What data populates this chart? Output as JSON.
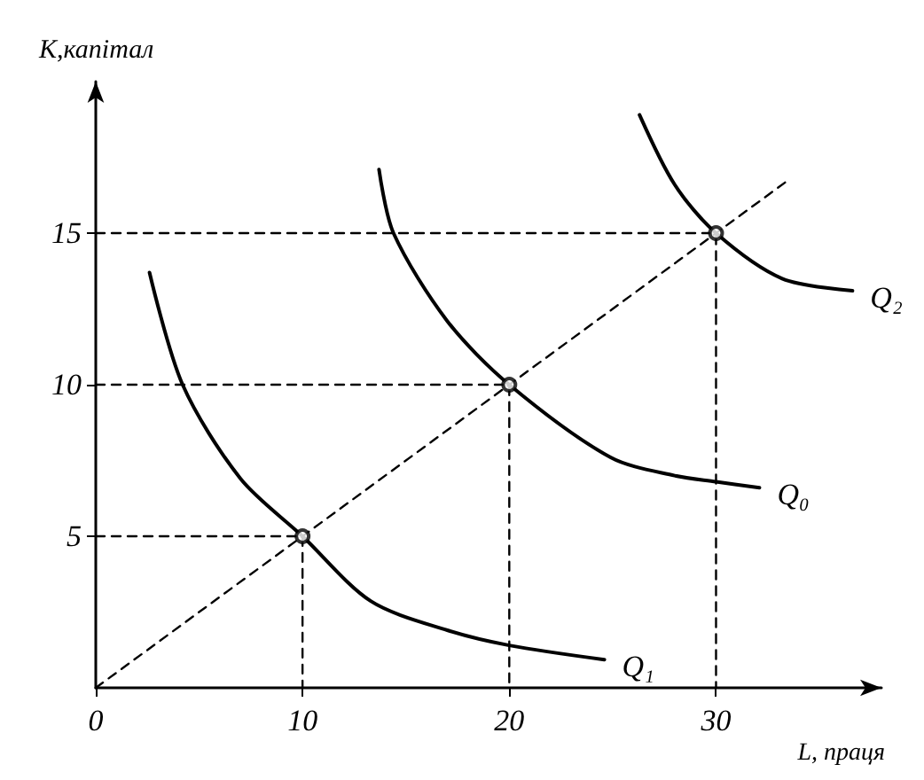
{
  "chart_data": {
    "type": "line",
    "xlabel": "L, праця",
    "ylabel": "K,капітал",
    "xlim": [
      0,
      38
    ],
    "ylim": [
      0,
      20
    ],
    "xticks": [
      0,
      10,
      20,
      30
    ],
    "yticks": [
      5,
      10,
      15
    ],
    "marker": "none",
    "line_style": "solid",
    "series": [
      {
        "name": "Q₁",
        "color": "#000000",
        "x": [
          2.6,
          4.2,
          7,
          10,
          13.3,
          17,
          20,
          24.6
        ],
        "values": [
          13.7,
          10,
          6.9,
          5,
          2.86,
          1.9,
          1.4,
          0.93
        ]
      },
      {
        "name": "Q₀",
        "color": "#000000",
        "x": [
          13.7,
          14.4,
          17,
          20,
          24.9,
          28,
          30,
          32.1
        ],
        "values": [
          17.1,
          15,
          12.1,
          10,
          7.6,
          7,
          6.8,
          6.6
        ]
      },
      {
        "name": "Q₂",
        "color": "#000000",
        "x": [
          26.3,
          28,
          30,
          33.2,
          36.6
        ],
        "values": [
          18.9,
          16.6,
          15,
          13.5,
          13.1
        ]
      },
      {
        "color": "#000000",
        "line_style": "dashed",
        "x": [
          0,
          33.5
        ],
        "values": [
          0,
          16.75
        ]
      },
      {
        "color": "#000000",
        "line_style": "dashed",
        "x": [
          0,
          10,
          10
        ],
        "values": [
          5,
          5,
          0
        ]
      },
      {
        "color": "#000000",
        "line_style": "dashed",
        "x": [
          0,
          20,
          20
        ],
        "values": [
          10,
          10,
          0
        ]
      },
      {
        "color": "#000000",
        "line_style": "dashed",
        "x": [
          0,
          30,
          30
        ],
        "values": [
          15,
          15,
          0
        ]
      },
      {
        "type": "scatter",
        "color": "#000000",
        "marker": "circle",
        "x": [
          10,
          20,
          30
        ],
        "values": [
          5,
          10,
          15
        ]
      }
    ]
  }
}
